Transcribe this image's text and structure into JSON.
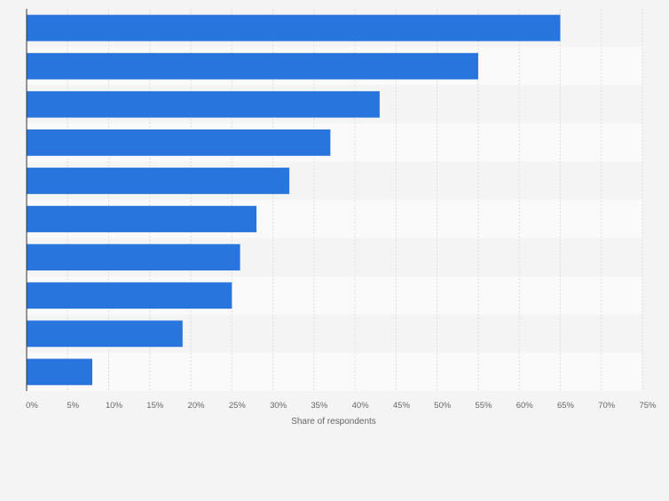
{
  "chart_data": {
    "type": "bar",
    "orientation": "horizontal",
    "categories": [
      "",
      "",
      "",
      "",
      "",
      "",
      "",
      "",
      "",
      ""
    ],
    "values": [
      65,
      55,
      43,
      37,
      32,
      28,
      26,
      25,
      19,
      8
    ],
    "xlabel": "Share of respondents",
    "ylabel": "",
    "xlim": [
      0,
      75
    ],
    "x_ticks": [
      "0%",
      "5%",
      "10%",
      "15%",
      "20%",
      "25%",
      "30%",
      "35%",
      "40%",
      "45%",
      "50%",
      "55%",
      "60%",
      "65%",
      "70%",
      "75%"
    ],
    "grid": true,
    "bar_color": "#2876dd",
    "band_colors": [
      "#f4f4f4",
      "#fafafa"
    ],
    "axis_color": "#333333",
    "label_color": "#666666"
  }
}
